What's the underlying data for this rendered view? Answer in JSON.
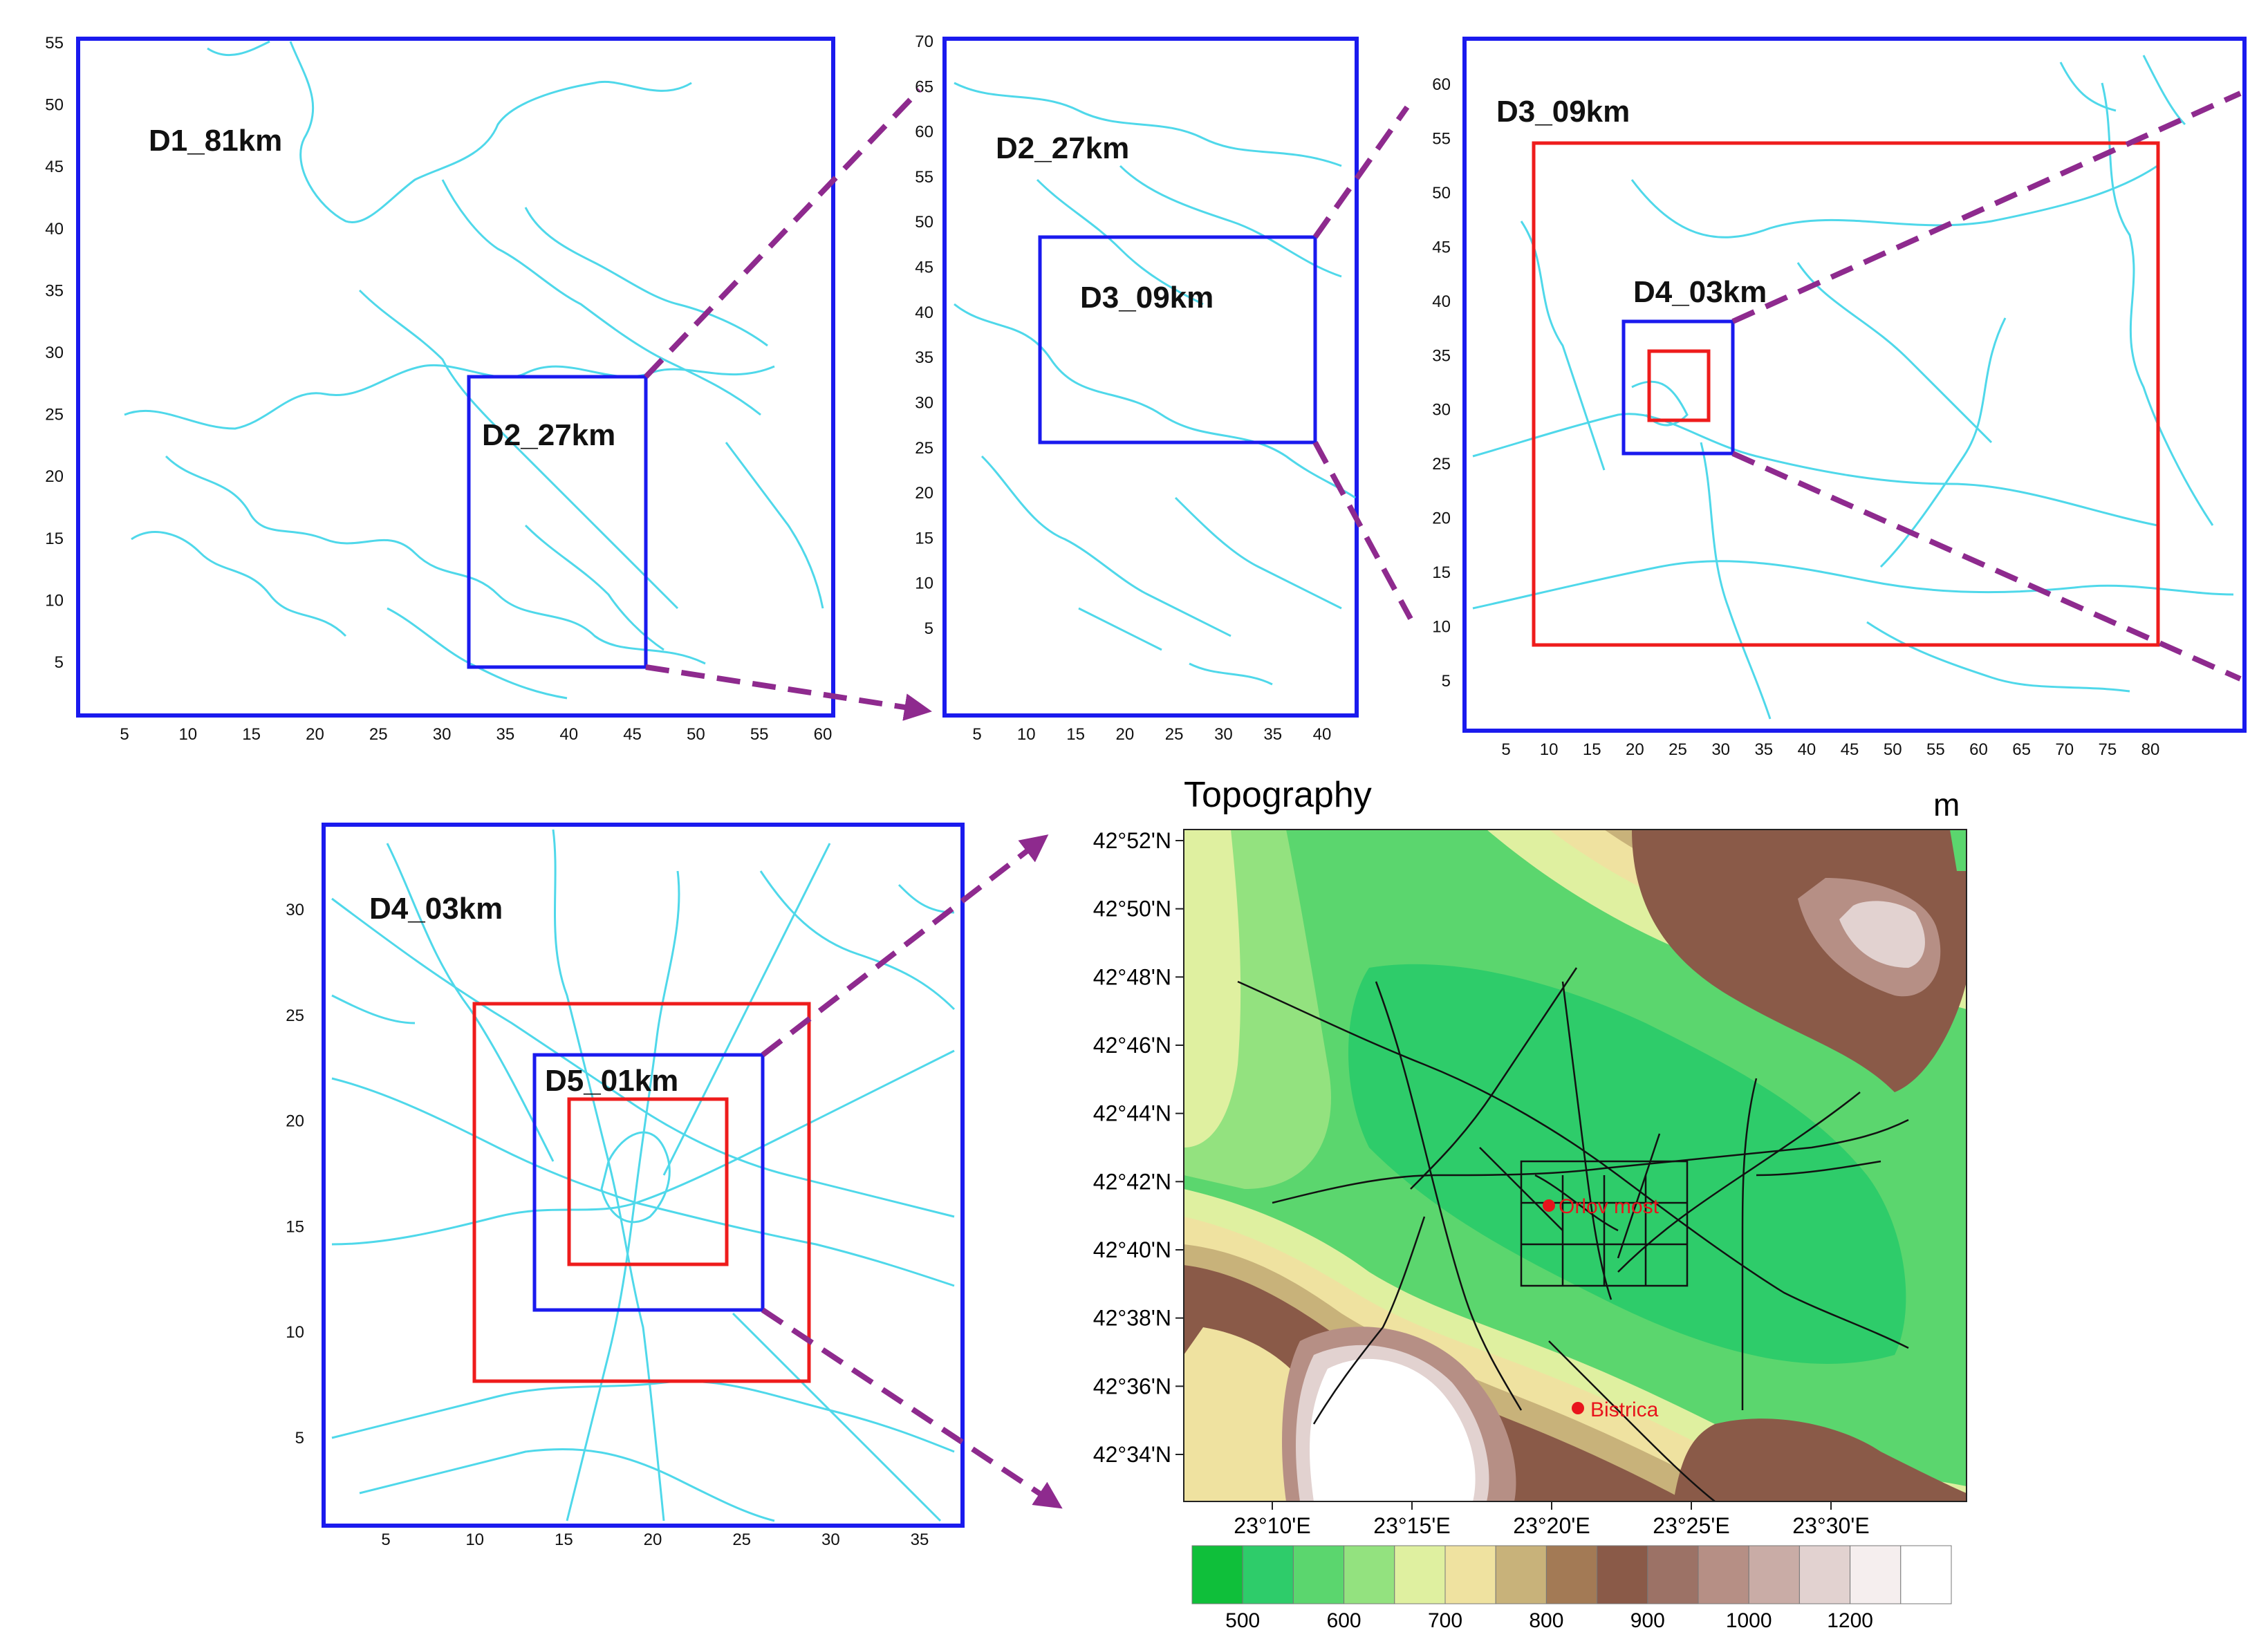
{
  "panels": {
    "p1": {
      "label": "D1_81km",
      "inner_label": "D2_27km",
      "x_ticks": [
        "5",
        "10",
        "15",
        "20",
        "25",
        "30",
        "35",
        "40",
        "45",
        "50",
        "55",
        "60"
      ],
      "y_ticks": [
        "5",
        "10",
        "15",
        "20",
        "25",
        "30",
        "35",
        "40",
        "45",
        "50",
        "55"
      ]
    },
    "p2": {
      "label": "D2_27km",
      "inner_label": "D3_09km",
      "x_ticks": [
        "5",
        "10",
        "15",
        "20",
        "25",
        "30",
        "35",
        "40"
      ],
      "y_ticks": [
        "5",
        "10",
        "15",
        "20",
        "25",
        "30",
        "35",
        "40",
        "45",
        "50",
        "55",
        "60",
        "65",
        "70"
      ]
    },
    "p3": {
      "label": "D3_09km",
      "inner_label": "D4_03km",
      "x_ticks": [
        "5",
        "10",
        "15",
        "20",
        "25",
        "30",
        "35",
        "40",
        "45",
        "50",
        "55",
        "60",
        "65",
        "70",
        "75",
        "80"
      ],
      "y_ticks": [
        "5",
        "10",
        "15",
        "20",
        "25",
        "30",
        "35",
        "40",
        "45",
        "50",
        "55",
        "60"
      ]
    },
    "p4": {
      "label": "D4_03km",
      "inner_label": "D5_01km",
      "x_ticks": [
        "5",
        "10",
        "15",
        "20",
        "25",
        "30",
        "35"
      ],
      "y_ticks": [
        "5",
        "10",
        "15",
        "20",
        "25",
        "30"
      ]
    }
  },
  "topo": {
    "title": "Topography",
    "unit": "m",
    "lat_ticks": [
      "42°52'N",
      "42°50'N",
      "42°48'N",
      "42°46'N",
      "42°44'N",
      "42°42'N",
      "42°40'N",
      "42°38'N",
      "42°36'N",
      "42°34'N"
    ],
    "lon_ticks": [
      "23°10'E",
      "23°15'E",
      "23°20'E",
      "23°25'E",
      "23°30'E"
    ],
    "points": [
      {
        "name": "Orlov most",
        "color": "#e8141c"
      },
      {
        "name": "Bistrica",
        "color": "#e8141c"
      }
    ],
    "colorbar": {
      "colors": [
        "#0fbf3a",
        "#2ecc6a",
        "#5bd66e",
        "#93e27f",
        "#dff0a0",
        "#efe2a0",
        "#c8b27a",
        "#a37a55",
        "#8a5a48",
        "#9c7266",
        "#b68f85",
        "#c9aca6",
        "#e2d2d0",
        "#f5eeee",
        "#ffffff"
      ],
      "labels": [
        "500",
        "600",
        "700",
        "800",
        "900",
        "1000",
        "1200"
      ]
    }
  },
  "colors": {
    "frame": "#1a1aee",
    "rivers": "#4fd8ea",
    "box_red": "#ee1c1c",
    "arrow": "#8e2a8e"
  }
}
